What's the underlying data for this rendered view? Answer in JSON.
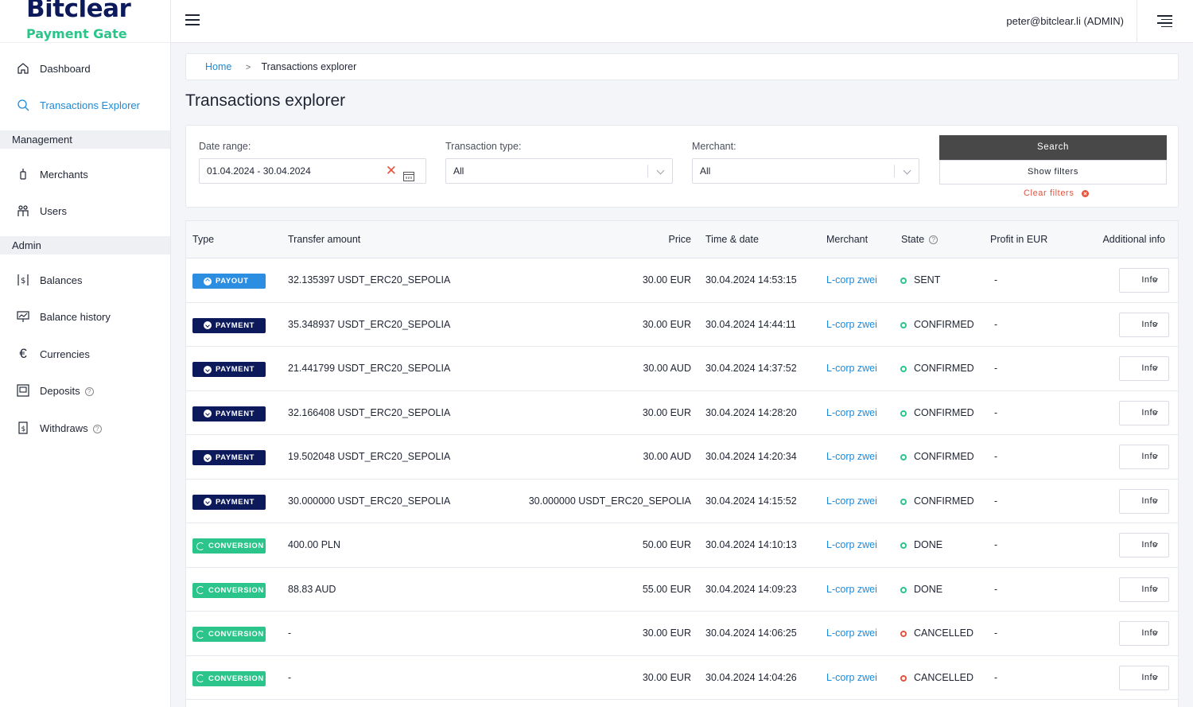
{
  "logo": {
    "main": "Bitclear",
    "sub": "Payment Gate"
  },
  "sidebar": {
    "items": [
      {
        "label": "Dashboard",
        "icon": "home-icon",
        "active": false
      },
      {
        "label": "Transactions Explorer",
        "icon": "search-icon",
        "active": true
      }
    ],
    "sections": [
      {
        "title": "Management",
        "items": [
          {
            "label": "Merchants",
            "icon": "merchant-icon"
          },
          {
            "label": "Users",
            "icon": "users-icon"
          }
        ]
      },
      {
        "title": "Admin",
        "items": [
          {
            "label": "Balances",
            "icon": "balances-icon"
          },
          {
            "label": "Balance history",
            "icon": "balance-history-icon"
          },
          {
            "label": "Currencies",
            "icon": "euro-icon"
          },
          {
            "label": "Deposits",
            "icon": "deposits-icon",
            "help": "?"
          },
          {
            "label": "Withdraws",
            "icon": "withdraws-icon",
            "help": "?"
          }
        ]
      }
    ]
  },
  "header": {
    "user": "peter@bitclear.li (ADMIN)"
  },
  "breadcrumb": {
    "home": "Home",
    "sep": ">",
    "current": "Transactions explorer"
  },
  "page_title": "Transactions explorer",
  "filters": {
    "date_label": "Date range:",
    "date_value": "01.04.2024 - 30.04.2024",
    "type_label": "Transaction type:",
    "type_value": "All",
    "merchant_label": "Merchant:",
    "merchant_value": "All",
    "search": "Search",
    "show": "Show filters",
    "clear": "Clear filters"
  },
  "table": {
    "headers": {
      "type": "Type",
      "amount": "Transfer amount",
      "price": "Price",
      "time": "Time & date",
      "merchant": "Merchant",
      "state": "State",
      "state_help": "?",
      "profit": "Profit in EUR",
      "info": "Additional info"
    },
    "rows": [
      {
        "type": "PAYOUT",
        "kind": "payout",
        "amount": "32.135397 USDT_ERC20_SEPOLIA",
        "price": "30.00 EUR",
        "time": "30.04.2024 14:53:15",
        "merchant": "L-corp zwei",
        "state": "SENT",
        "ok": true,
        "profit": "-",
        "info": "Info"
      },
      {
        "type": "PAYMENT",
        "kind": "payment",
        "amount": "35.348937 USDT_ERC20_SEPOLIA",
        "price": "30.00 EUR",
        "time": "30.04.2024 14:44:11",
        "merchant": "L-corp zwei",
        "state": "CONFIRMED",
        "ok": true,
        "profit": "-",
        "info": "Info"
      },
      {
        "type": "PAYMENT",
        "kind": "payment",
        "amount": "21.441799 USDT_ERC20_SEPOLIA",
        "price": "30.00 AUD",
        "time": "30.04.2024 14:37:52",
        "merchant": "L-corp zwei",
        "state": "CONFIRMED",
        "ok": true,
        "profit": "-",
        "info": "Info"
      },
      {
        "type": "PAYMENT",
        "kind": "payment",
        "amount": "32.166408 USDT_ERC20_SEPOLIA",
        "price": "30.00 EUR",
        "time": "30.04.2024 14:28:20",
        "merchant": "L-corp zwei",
        "state": "CONFIRMED",
        "ok": true,
        "profit": "-",
        "info": "Info"
      },
      {
        "type": "PAYMENT",
        "kind": "payment",
        "amount": "19.502048 USDT_ERC20_SEPOLIA",
        "price": "30.00 AUD",
        "time": "30.04.2024 14:20:34",
        "merchant": "L-corp zwei",
        "state": "CONFIRMED",
        "ok": true,
        "profit": "-",
        "info": "Info"
      },
      {
        "type": "PAYMENT",
        "kind": "payment",
        "amount": "30.000000 USDT_ERC20_SEPOLIA",
        "price": "30.000000 USDT_ERC20_SEPOLIA",
        "time": "30.04.2024 14:15:52",
        "merchant": "L-corp zwei",
        "state": "CONFIRMED",
        "ok": true,
        "profit": "-",
        "info": "Info"
      },
      {
        "type": "CONVERSION",
        "kind": "conversion",
        "amount": "400.00 PLN",
        "price": "50.00 EUR",
        "time": "30.04.2024 14:10:13",
        "merchant": "L-corp zwei",
        "state": "DONE",
        "ok": true,
        "profit": "-",
        "info": "Info"
      },
      {
        "type": "CONVERSION",
        "kind": "conversion",
        "amount": "88.83 AUD",
        "price": "55.00 EUR",
        "time": "30.04.2024 14:09:23",
        "merchant": "L-corp zwei",
        "state": "DONE",
        "ok": true,
        "profit": "-",
        "info": "Info"
      },
      {
        "type": "CONVERSION",
        "kind": "conversion",
        "amount": "-",
        "price": "30.00 EUR",
        "time": "30.04.2024 14:06:25",
        "merchant": "L-corp zwei",
        "state": "CANCELLED",
        "ok": false,
        "profit": "-",
        "info": "Info"
      },
      {
        "type": "CONVERSION",
        "kind": "conversion",
        "amount": "-",
        "price": "30.00 EUR",
        "time": "30.04.2024 14:04:26",
        "merchant": "L-corp zwei",
        "state": "CANCELLED",
        "ok": false,
        "profit": "-",
        "info": "Info"
      }
    ]
  },
  "colors": {
    "accent": "#1b8ad9",
    "brand_navy": "#0c1a5b",
    "brand_green": "#2bc48a",
    "danger": "#e5533d"
  }
}
